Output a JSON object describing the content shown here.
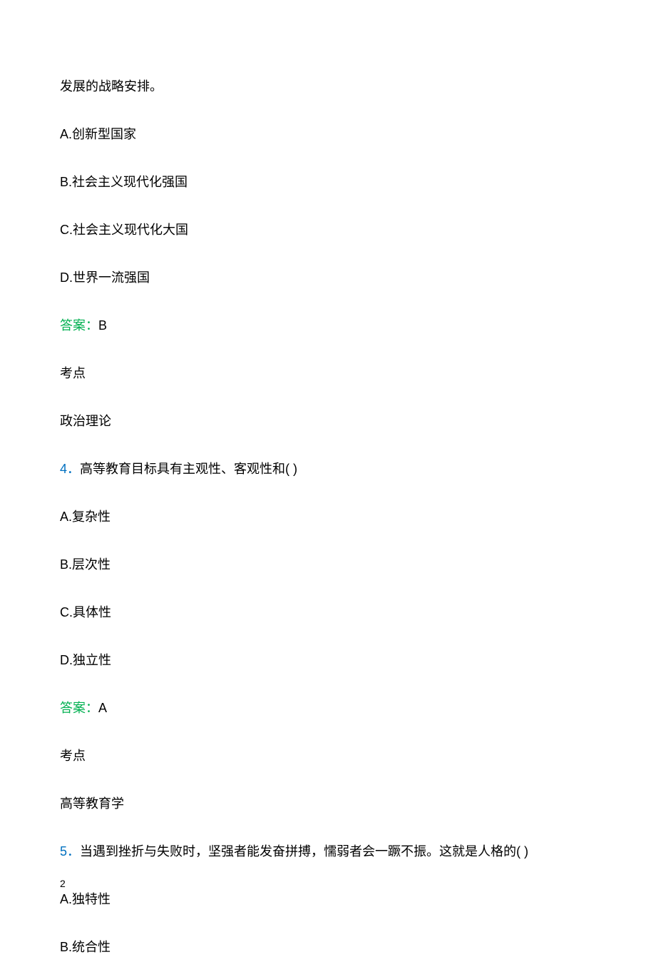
{
  "colors": {
    "text": "#000000",
    "answer_label": "#00b050",
    "question_number": "#0070c0",
    "background": "#ffffff"
  },
  "typography": {
    "body_fontsize": 18,
    "pagenum_fontsize": 14,
    "line_spacing": 40
  },
  "q3": {
    "stem_fragment": "发展的战略安排。",
    "options": {
      "A": "A.创新型国家",
      "B": "B.社会主义现代化强国",
      "C": "C.社会主义现代化大国",
      "D": "D.世界一流强国"
    },
    "answer_label": "答案：",
    "answer_value": "B",
    "topic_label": "考点",
    "topic_value": "政治理论"
  },
  "q4": {
    "number": "4．",
    "stem": "高等教育目标具有主观性、客观性和( )",
    "options": {
      "A": "A.复杂性",
      "B": "B.层次性",
      "C": "C.具体性",
      "D": "D.独立性"
    },
    "answer_label": "答案：",
    "answer_value": "A",
    "topic_label": "考点",
    "topic_value": "高等教育学"
  },
  "q5": {
    "number": "5．",
    "stem": "当遇到挫折与失败时，坚强者能发奋拼搏，懦弱者会一蹶不振。这就是人格的( )",
    "options": {
      "A": "A.独特性",
      "B": "B.统合性"
    }
  },
  "page_number": "2"
}
